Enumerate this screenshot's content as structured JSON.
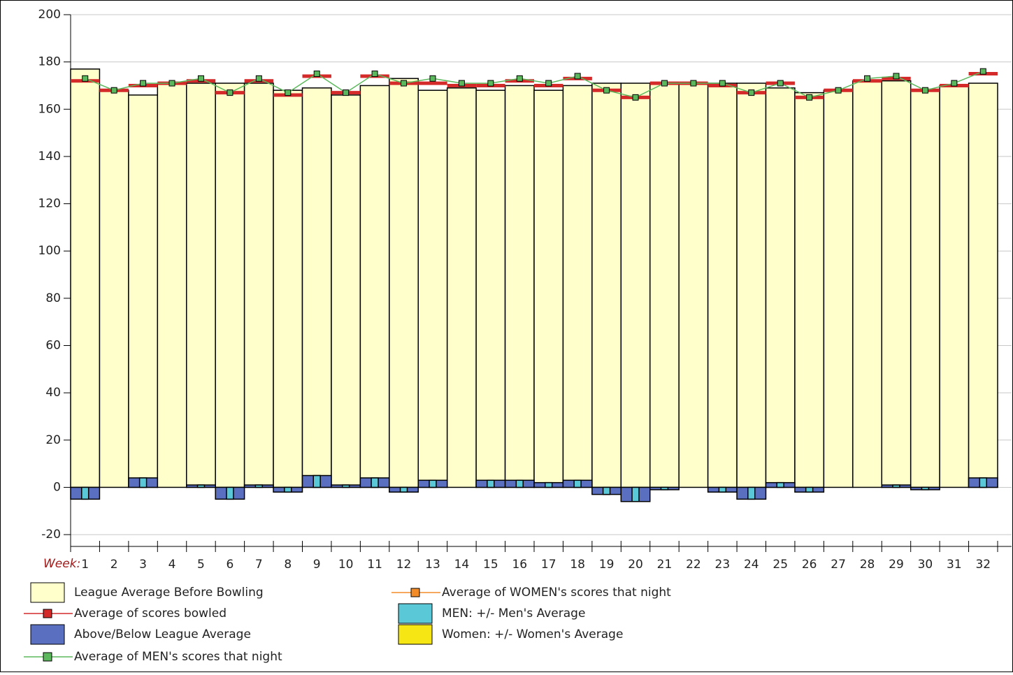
{
  "chart_data": {
    "type": "bar",
    "x_label": "Week:",
    "categories": [
      "1",
      "2",
      "3",
      "4",
      "5",
      "6",
      "7",
      "8",
      "9",
      "10",
      "11",
      "12",
      "13",
      "14",
      "15",
      "16",
      "17",
      "18",
      "19",
      "20",
      "21",
      "22",
      "23",
      "24",
      "25",
      "26",
      "27",
      "28",
      "29",
      "30",
      "31",
      "32"
    ],
    "ylim": [
      -25,
      200
    ],
    "yticks": [
      -20,
      0,
      20,
      40,
      60,
      80,
      100,
      120,
      140,
      160,
      180,
      200
    ],
    "grid": true,
    "series": [
      {
        "name": "League Average Before Bowling",
        "type": "bar",
        "color": "#ffffcc",
        "values": [
          177,
          168,
          166,
          171,
          171,
          171,
          171,
          168,
          169,
          166,
          170,
          173,
          168,
          169,
          168,
          170,
          168,
          170,
          171,
          171,
          171,
          171,
          171,
          171,
          169,
          167,
          168,
          172,
          172,
          168,
          170,
          171
        ]
      },
      {
        "name": "Average of scores bowled",
        "type": "level",
        "color": "#d42a2a",
        "values": [
          172,
          168,
          170,
          171,
          172,
          167,
          172,
          166,
          174,
          167,
          174,
          171,
          171,
          170,
          170,
          172,
          170,
          173,
          168,
          165,
          171,
          171,
          170,
          167,
          171,
          165,
          168,
          172,
          173,
          168,
          170,
          175
        ]
      },
      {
        "name": "Above/Below League Average",
        "type": "bar",
        "color": "#5a6fc0",
        "values": [
          -5,
          0,
          4,
          0,
          1,
          -5,
          1,
          -2,
          5,
          1,
          4,
          -2,
          3,
          0,
          3,
          3,
          2,
          3,
          -3,
          -6,
          -1,
          0,
          -2,
          -5,
          2,
          -2,
          0,
          0,
          1,
          -1,
          0,
          4
        ]
      },
      {
        "name": "Average of MEN's scores that night",
        "type": "line",
        "color": "#5cb85c",
        "values": [
          173,
          168,
          171,
          171,
          173,
          167,
          173,
          167,
          175,
          167,
          175,
          171,
          173,
          171,
          171,
          173,
          171,
          174,
          168,
          165,
          171,
          171,
          171,
          167,
          171,
          165,
          168,
          173,
          174,
          168,
          171,
          176
        ]
      },
      {
        "name": "Average of WOMEN's scores that night",
        "type": "line",
        "color": "#f28c28",
        "values": [
          null,
          null,
          null,
          null,
          null,
          null,
          null,
          null,
          null,
          null,
          null,
          null,
          null,
          null,
          null,
          null,
          null,
          null,
          null,
          null,
          null,
          null,
          null,
          null,
          null,
          null,
          null,
          null,
          null,
          null,
          null,
          null
        ]
      },
      {
        "name": "MEN: +/- Men's Average",
        "type": "inner",
        "color": "#5bc8d8",
        "values": [
          -5,
          0,
          4,
          0,
          1,
          -5,
          1,
          -2,
          5,
          1,
          4,
          -2,
          3,
          0,
          3,
          3,
          2,
          3,
          -3,
          -6,
          -1,
          0,
          -2,
          -5,
          2,
          -2,
          0,
          0,
          1,
          -1,
          0,
          4
        ]
      },
      {
        "name": "Women: +/- Women's Average",
        "type": "inner",
        "color": "#f5e614",
        "values": [
          null,
          null,
          null,
          null,
          null,
          null,
          null,
          null,
          null,
          null,
          null,
          null,
          null,
          null,
          null,
          null,
          null,
          null,
          null,
          null,
          null,
          null,
          null,
          null,
          null,
          null,
          null,
          null,
          null,
          null,
          null,
          null
        ]
      }
    ]
  }
}
